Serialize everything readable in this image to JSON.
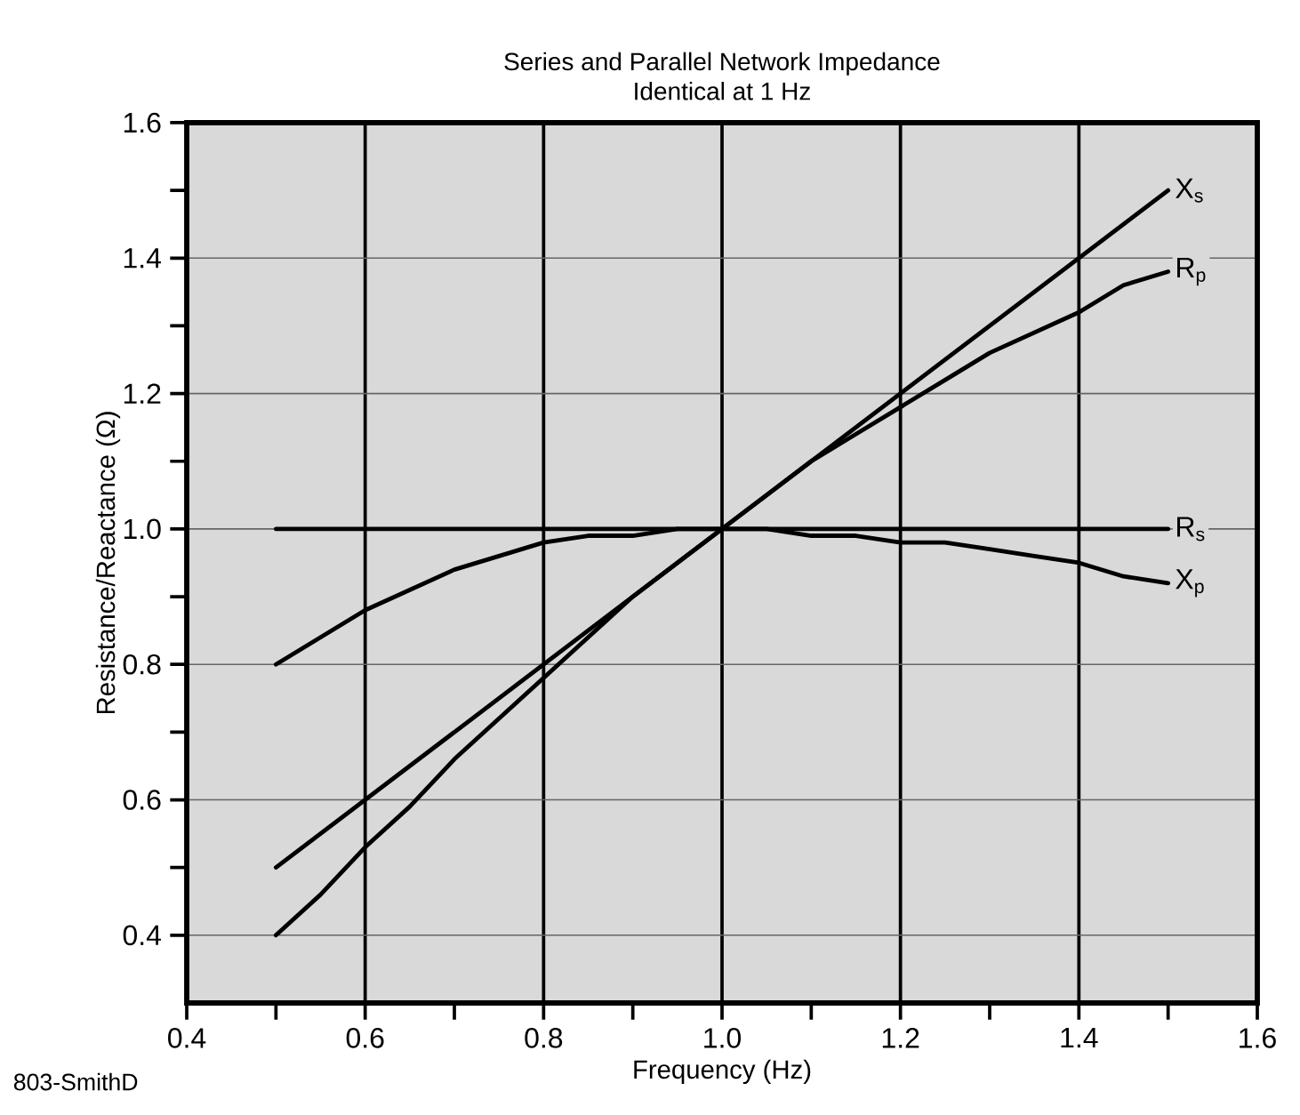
{
  "chart_data": {
    "type": "line",
    "title": "Series and Parallel Network Impedance",
    "subtitle": "Identical at 1 Hz",
    "xlabel": "Frequency (Hz)",
    "ylabel": "Resistance/Reactance (Ω)",
    "xlim": [
      0.4,
      1.6
    ],
    "ylim": [
      0.3,
      1.6
    ],
    "xticks": [
      0.4,
      {
        "value": 0.5,
        "label": null
      },
      0.6,
      {
        "value": 0.7,
        "label": null
      },
      0.8,
      {
        "value": 0.9,
        "label": null
      },
      {
        "value": 1.0,
        "label": "1.0"
      },
      {
        "value": 1.1,
        "label": null
      },
      1.2,
      {
        "value": 1.3,
        "label": null
      },
      1.4,
      {
        "value": 1.5,
        "label": null
      },
      1.6
    ],
    "yticks": [
      0.4,
      {
        "value": 0.5,
        "label": null
      },
      0.6,
      {
        "value": 0.7,
        "label": null
      },
      0.8,
      {
        "value": 0.9,
        "label": null
      },
      {
        "value": 1.0,
        "label": "1.0"
      },
      {
        "value": 1.1,
        "label": null
      },
      1.2,
      {
        "value": 1.3,
        "label": null
      },
      1.4,
      {
        "value": 1.5,
        "label": null
      },
      1.6
    ],
    "grid": true,
    "marker": "none",
    "line_style": "solid",
    "annotations": [
      "803-SmithD"
    ],
    "series": [
      {
        "name": "X$_{s}$",
        "color": "#000000",
        "x": [
          0.5,
          1.5
        ],
        "values": [
          0.5,
          1.5
        ]
      },
      {
        "name": "R$_{p}$",
        "color": "#000000",
        "x": [
          0.5,
          0.55,
          0.6,
          0.65,
          0.7,
          0.75,
          0.8,
          0.85,
          0.9,
          0.95,
          1.0,
          1.05,
          1.1,
          1.15,
          1.2,
          1.25,
          1.3,
          1.35,
          1.4,
          1.45,
          1.5
        ],
        "values": [
          0.4,
          0.46,
          0.53,
          0.59,
          0.66,
          0.72,
          0.78,
          0.84,
          0.9,
          0.95,
          1.0,
          1.05,
          1.1,
          1.14,
          1.18,
          1.22,
          1.26,
          1.29,
          1.32,
          1.36,
          1.38
        ]
      },
      {
        "name": "R$_{s}$",
        "color": "#000000",
        "x": [
          0.5,
          1.5
        ],
        "values": [
          1.0,
          1.0
        ]
      },
      {
        "name": "X$_{p}$",
        "color": "#000000",
        "x": [
          0.5,
          0.55,
          0.6,
          0.65,
          0.7,
          0.75,
          0.8,
          0.85,
          0.9,
          0.95,
          1.0,
          1.05,
          1.1,
          1.15,
          1.2,
          1.25,
          1.3,
          1.35,
          1.4,
          1.45,
          1.5
        ],
        "values": [
          0.8,
          0.84,
          0.88,
          0.91,
          0.94,
          0.96,
          0.98,
          0.99,
          0.99,
          1.0,
          1.0,
          1.0,
          0.99,
          0.99,
          0.98,
          0.98,
          0.97,
          0.96,
          0.95,
          0.93,
          0.92
        ]
      }
    ]
  }
}
